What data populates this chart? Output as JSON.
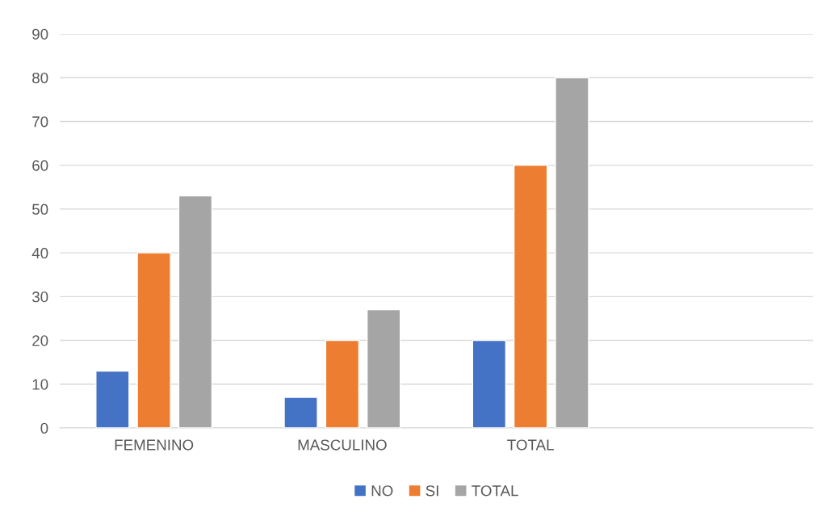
{
  "chart_data": {
    "type": "bar",
    "categories": [
      "FEMENINO",
      "MASCULINO",
      "TOTAL",
      null
    ],
    "series": [
      {
        "name": "NO",
        "color": "#4472c4",
        "values": [
          13,
          7,
          20,
          null
        ]
      },
      {
        "name": "SI",
        "color": "#ed7d31",
        "values": [
          40,
          20,
          60,
          null
        ]
      },
      {
        "name": "TOTAL",
        "color": "#a5a5a5",
        "values": [
          53,
          27,
          80,
          null
        ]
      }
    ],
    "ylim": [
      0,
      90
    ],
    "yticks": [
      0,
      10,
      20,
      30,
      40,
      50,
      60,
      70,
      80,
      90
    ],
    "grid": "y",
    "legend": "bottom"
  }
}
